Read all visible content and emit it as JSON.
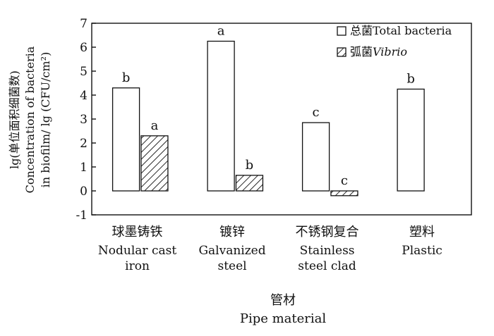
{
  "chart_data": {
    "type": "bar",
    "categories": [
      {
        "zh": "球墨铸铁",
        "en": [
          "Nodular cast",
          "iron"
        ]
      },
      {
        "zh": "镀锌",
        "en": [
          "Galvanized",
          "steel"
        ]
      },
      {
        "zh": "不锈钢复合",
        "en": [
          "Stainless",
          "steel clad"
        ]
      },
      {
        "zh": "塑料",
        "en": [
          "Plastic"
        ]
      }
    ],
    "series": [
      {
        "name": "总菌Total bacteria",
        "values": [
          4.3,
          6.25,
          2.85,
          4.25
        ],
        "labels": [
          "b",
          "a",
          "c",
          "b"
        ],
        "fill": "#ffffff"
      },
      {
        "name": "弧菌Vibrio",
        "values": [
          2.3,
          0.65,
          -0.2,
          null
        ],
        "labels": [
          "a",
          "b",
          "c",
          null
        ],
        "fill": "hatch"
      }
    ],
    "legend": {
      "series_0_zh": "总菌",
      "series_0_en": "Total bacteria",
      "series_1_zh": "弧菌",
      "series_1_en": "Vibrio",
      "placement": "top-right"
    },
    "ylim": [
      -1,
      7
    ],
    "yticks": [
      "-1",
      "0",
      "1",
      "2",
      "3",
      "4",
      "5",
      "6",
      "7"
    ],
    "ylabel_lines": [
      "lg(单位面积细菌数)",
      "Concentration of bacteria",
      "in biofilm/ lg (CFU/cm²)"
    ],
    "xlabel_zh": "管材",
    "xlabel_en": "Pipe material",
    "grid": false
  }
}
